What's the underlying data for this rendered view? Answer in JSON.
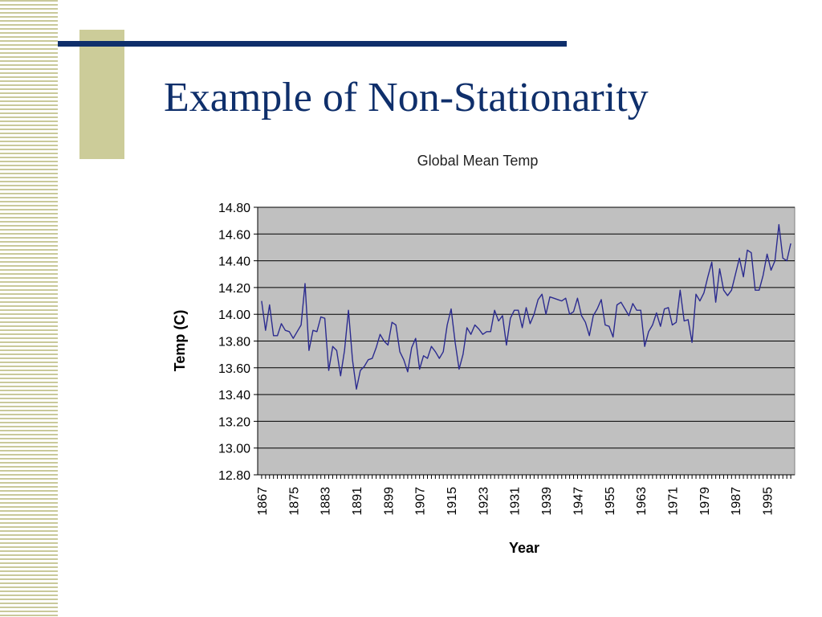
{
  "slide": {
    "title": "Example of Non-Stationarity",
    "colors": {
      "title": "#0f2f6b",
      "accent": "#cccc99",
      "rule": "#0f2f6b"
    }
  },
  "chart_data": {
    "type": "line",
    "title": "Global Mean Temp",
    "xlabel": "Year",
    "ylabel": "Temp (C)",
    "ylim": [
      12.8,
      14.8
    ],
    "yticks": [
      "14.80",
      "14.60",
      "14.40",
      "14.20",
      "14.00",
      "13.80",
      "13.60",
      "13.40",
      "13.20",
      "13.00",
      "12.80"
    ],
    "xticks": [
      "1867",
      "1875",
      "1883",
      "1891",
      "1899",
      "1907",
      "1915",
      "1923",
      "1931",
      "1939",
      "1947",
      "1955",
      "1963",
      "1971",
      "1979",
      "1987",
      "1995"
    ],
    "grid": true,
    "legend": "none",
    "plot_background": "#c0c0c0",
    "line_color": "#2b2b8f",
    "x": [
      1867,
      1868,
      1869,
      1870,
      1871,
      1872,
      1873,
      1874,
      1875,
      1876,
      1877,
      1878,
      1879,
      1880,
      1881,
      1882,
      1883,
      1884,
      1885,
      1886,
      1887,
      1888,
      1889,
      1890,
      1891,
      1892,
      1893,
      1894,
      1895,
      1896,
      1897,
      1898,
      1899,
      1900,
      1901,
      1902,
      1903,
      1904,
      1905,
      1906,
      1907,
      1908,
      1909,
      1910,
      1911,
      1912,
      1913,
      1914,
      1915,
      1916,
      1917,
      1918,
      1919,
      1920,
      1921,
      1922,
      1923,
      1924,
      1925,
      1926,
      1927,
      1928,
      1929,
      1930,
      1931,
      1932,
      1933,
      1934,
      1935,
      1936,
      1937,
      1938,
      1939,
      1940,
      1941,
      1942,
      1943,
      1944,
      1945,
      1946,
      1947,
      1948,
      1949,
      1950,
      1951,
      1952,
      1953,
      1954,
      1955,
      1956,
      1957,
      1958,
      1959,
      1960,
      1961,
      1962,
      1963,
      1964,
      1965,
      1966,
      1967,
      1968,
      1969,
      1970,
      1971,
      1972,
      1973,
      1974,
      1975,
      1976,
      1977,
      1978,
      1979,
      1980,
      1981,
      1982,
      1983,
      1984,
      1985,
      1986,
      1987,
      1988,
      1989,
      1990,
      1991,
      1992,
      1993,
      1994,
      1995,
      1996,
      1997,
      1998,
      1999,
      2000,
      2001
    ],
    "series": [
      {
        "values": [
          14.1,
          13.88,
          14.07,
          13.84,
          13.84,
          13.93,
          13.88,
          13.87,
          13.82,
          13.87,
          13.92,
          14.23,
          13.73,
          13.88,
          13.87,
          13.98,
          13.97,
          13.58,
          13.76,
          13.73,
          13.54,
          13.73,
          14.03,
          13.66,
          13.44,
          13.58,
          13.61,
          13.66,
          13.67,
          13.75,
          13.85,
          13.8,
          13.77,
          13.94,
          13.92,
          13.72,
          13.66,
          13.57,
          13.75,
          13.82,
          13.59,
          13.69,
          13.67,
          13.76,
          13.72,
          13.67,
          13.72,
          13.92,
          14.04,
          13.79,
          13.59,
          13.7,
          13.9,
          13.85,
          13.92,
          13.89,
          13.85,
          13.87,
          13.87,
          14.03,
          13.95,
          13.99,
          13.77,
          13.97,
          14.03,
          14.03,
          13.9,
          14.05,
          13.93,
          14.0,
          14.11,
          14.15,
          14.0,
          14.13,
          14.12,
          14.11,
          14.1,
          14.12,
          14.0,
          14.02,
          14.12,
          13.99,
          13.94,
          13.84,
          13.99,
          14.04,
          14.11,
          13.92,
          13.91,
          13.83,
          14.07,
          14.09,
          14.04,
          13.99,
          14.08,
          14.03,
          14.03,
          13.76,
          13.87,
          13.92,
          14.01,
          13.91,
          14.04,
          14.05,
          13.92,
          13.94,
          14.18,
          13.95,
          13.96,
          13.79,
          14.15,
          14.1,
          14.16,
          14.28,
          14.39,
          14.09,
          14.34,
          14.18,
          14.14,
          14.18,
          14.3,
          14.42,
          14.28,
          14.48,
          14.46,
          14.18,
          14.18,
          14.29,
          14.45,
          14.33,
          14.4,
          14.67,
          14.42,
          14.4,
          14.53
        ]
      }
    ]
  }
}
